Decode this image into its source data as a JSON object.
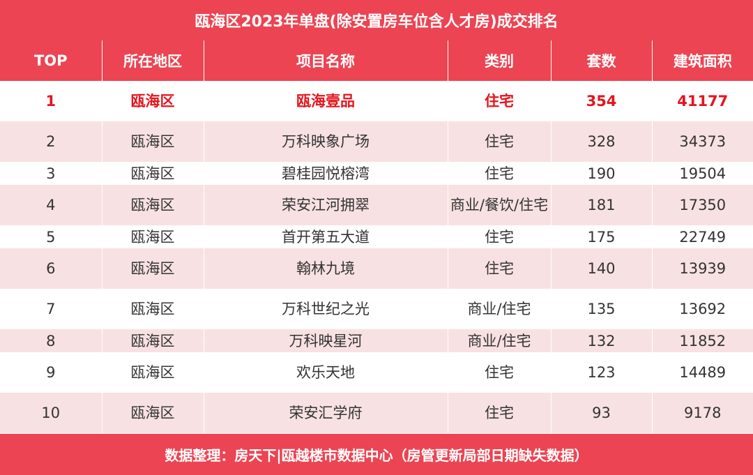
{
  "title": "瓯海区2023年单盘(除安置房车位含人才房)成交排名",
  "columns": [
    "TOP",
    "所在地区",
    "项目名称",
    "类别",
    "套数",
    "建筑面积"
  ],
  "rows": [
    {
      "top": "1",
      "district": "瓯海区",
      "project": "瓯海壹品",
      "category": "住宅",
      "units": "354",
      "area": "41177"
    },
    {
      "top": "2",
      "district": "瓯海区",
      "project": "万科映象广场",
      "category": "住宅",
      "units": "328",
      "area": "34373"
    },
    {
      "top": "3",
      "district": "瓯海区",
      "project": "碧桂园悦榕湾",
      "category": "住宅",
      "units": "190",
      "area": "19504"
    },
    {
      "top": "4",
      "district": "瓯海区",
      "project": "荣安江河拥翠",
      "category": "商业/餐饮/住宅",
      "units": "181",
      "area": "17350"
    },
    {
      "top": "5",
      "district": "瓯海区",
      "project": "首开第五大道",
      "category": "住宅",
      "units": "175",
      "area": "22749"
    },
    {
      "top": "6",
      "district": "瓯海区",
      "project": "翰林九境",
      "category": "住宅",
      "units": "140",
      "area": "13939"
    },
    {
      "top": "7",
      "district": "瓯海区",
      "project": "万科世纪之光",
      "category": "商业/住宅",
      "units": "135",
      "area": "13692"
    },
    {
      "top": "8",
      "district": "瓯海区",
      "project": "万科映星河",
      "category": "商业/住宅",
      "units": "132",
      "area": "11852"
    },
    {
      "top": "9",
      "district": "瓯海区",
      "project": "欢乐天地",
      "category": "住宅",
      "units": "123",
      "area": "14489"
    },
    {
      "top": "10",
      "district": "瓯海区",
      "project": "荣安汇学府",
      "category": "住宅",
      "units": "93",
      "area": "9178"
    }
  ],
  "footer": "数据整理：房天下|瓯越楼市数据中心（房管更新局部日期缺失数据）"
}
